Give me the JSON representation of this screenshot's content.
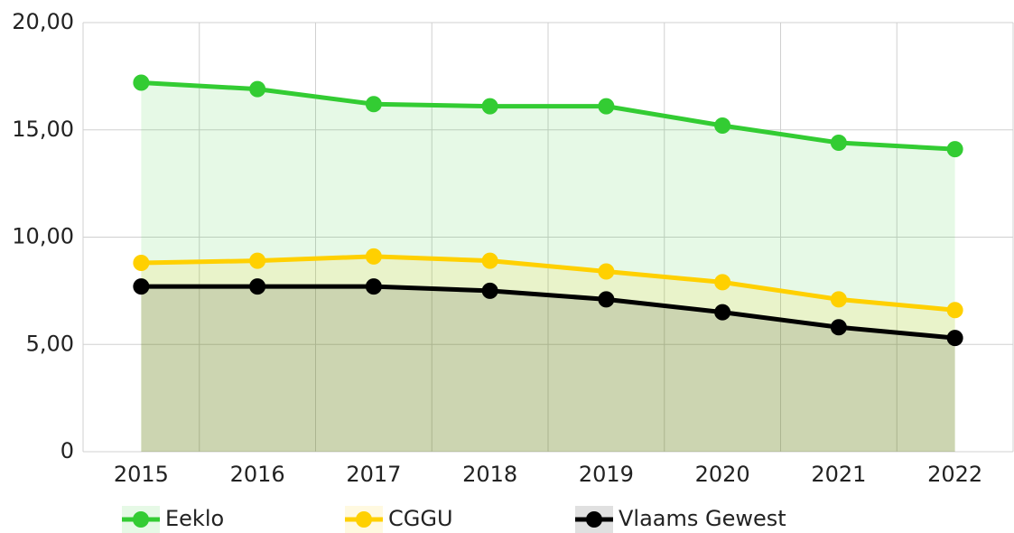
{
  "chart_data": {
    "type": "line",
    "categories": [
      "2015",
      "2016",
      "2017",
      "2018",
      "2019",
      "2020",
      "2021",
      "2022"
    ],
    "series": [
      {
        "name": "Eeklo",
        "color": "#33cc33",
        "values": [
          17.2,
          16.9,
          16.2,
          16.1,
          16.1,
          15.2,
          14.4,
          14.1
        ]
      },
      {
        "name": "CGGU",
        "color": "#ffd000",
        "values": [
          8.8,
          8.9,
          9.1,
          8.9,
          8.4,
          7.9,
          7.1,
          6.6
        ]
      },
      {
        "name": "Vlaams Gewest",
        "color": "#000000",
        "values": [
          7.7,
          7.7,
          7.7,
          7.5,
          7.1,
          6.5,
          5.8,
          5.3
        ]
      }
    ],
    "ylim": [
      0,
      20
    ],
    "yticks": [
      0,
      {
        "value": 5,
        "label": "5,00"
      },
      {
        "value": 10,
        "label": "10,00"
      },
      {
        "value": 15,
        "label": "15,00"
      },
      {
        "value": 20,
        "label": "20,00"
      }
    ],
    "grid": true,
    "area": true,
    "legend": "bottom"
  }
}
